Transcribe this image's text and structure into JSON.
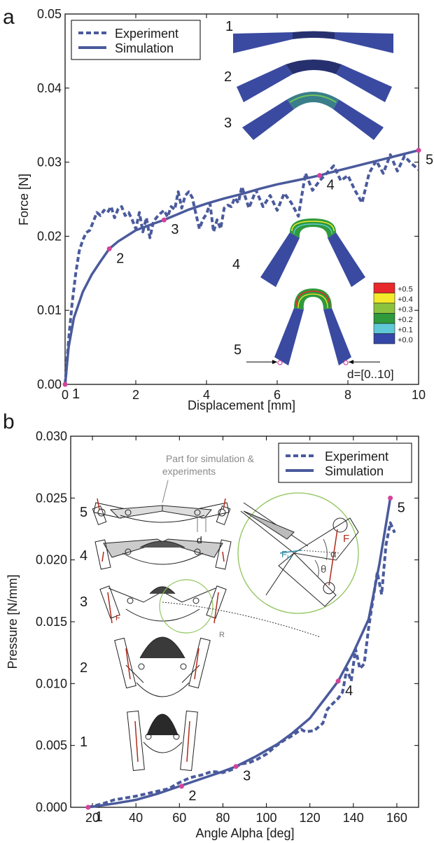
{
  "panel_labels": {
    "a": "a",
    "b": "b"
  },
  "colors": {
    "series": "#4a5a9c",
    "marker": "#d6429a",
    "mesh": "#3a4aa0",
    "green": "#8ec35a",
    "arrow": "#b02a1a"
  },
  "chart_data": [
    {
      "type": "line",
      "xlabel": "Displacement [mm]",
      "ylabel": "Force [N]",
      "xlim": [
        0,
        10
      ],
      "ylim": [
        0,
        0.05
      ],
      "xticks": [
        0,
        2,
        4,
        6,
        8,
        10
      ],
      "yticks": [
        0.0,
        0.01,
        0.02,
        0.03,
        0.04,
        0.05
      ],
      "ytick_labels": [
        "0.00",
        "0.01",
        "0.02",
        "0.03",
        "0.04",
        "0.05"
      ],
      "legend": {
        "position": "top-left",
        "entries": [
          "Experiment",
          "Simulation"
        ]
      },
      "series": [
        {
          "name": "Experiment",
          "style": "dashed",
          "x": [
            0,
            0.1,
            0.2,
            0.3,
            0.4,
            0.5,
            0.6,
            0.7,
            0.8,
            0.9,
            1.0,
            1.1,
            1.2,
            1.3,
            1.4,
            1.5,
            1.6,
            1.7,
            1.8,
            1.9,
            2.0,
            2.1,
            2.2,
            2.3,
            2.4,
            2.5,
            2.6,
            2.7,
            2.8,
            2.9,
            3.0,
            3.1,
            3.2,
            3.3,
            3.4,
            3.5,
            3.6,
            3.7,
            3.8,
            3.9,
            4.0,
            4.1,
            4.2,
            4.3,
            4.4,
            4.5,
            4.6,
            4.7,
            4.8,
            4.9,
            5.0,
            5.2,
            5.4,
            5.6,
            5.8,
            6.0,
            6.2,
            6.4,
            6.6,
            6.8,
            7.0,
            7.2,
            7.4,
            7.6,
            7.8,
            8.0,
            8.2,
            8.4,
            8.6,
            8.8,
            9.0,
            9.2,
            9.4,
            9.6,
            9.8,
            10.0
          ],
          "y": [
            0.0,
            0.006,
            0.011,
            0.015,
            0.018,
            0.0195,
            0.0205,
            0.0208,
            0.022,
            0.0232,
            0.0228,
            0.0235,
            0.0232,
            0.024,
            0.0225,
            0.0237,
            0.024,
            0.0228,
            0.0232,
            0.0222,
            0.021,
            0.0232,
            0.0206,
            0.0225,
            0.0198,
            0.022,
            0.0226,
            0.0231,
            0.0235,
            0.0226,
            0.024,
            0.0236,
            0.026,
            0.0238,
            0.0255,
            0.026,
            0.0252,
            0.023,
            0.021,
            0.0223,
            0.023,
            0.0244,
            0.0206,
            0.0222,
            0.021,
            0.0238,
            0.0242,
            0.024,
            0.0252,
            0.0245,
            0.0267,
            0.0238,
            0.0262,
            0.024,
            0.0255,
            0.0235,
            0.0258,
            0.0245,
            0.0227,
            0.0285,
            0.0262,
            0.0275,
            0.0285,
            0.0295,
            0.0275,
            0.0282,
            0.0262,
            0.0245,
            0.0285,
            0.0302,
            0.0285,
            0.031,
            0.0288,
            0.0308,
            0.0298,
            0.029
          ]
        },
        {
          "name": "Simulation",
          "style": "solid",
          "x": [
            0,
            0.1,
            0.25,
            0.5,
            0.75,
            1.0,
            1.25,
            1.5,
            2.0,
            2.5,
            2.8,
            3.0,
            3.5,
            4.0,
            4.5,
            5.0,
            5.5,
            6.0,
            6.5,
            7.0,
            7.2,
            7.5,
            8.0,
            8.5,
            9.0,
            9.5,
            10.0
          ],
          "y": [
            0.0,
            0.005,
            0.009,
            0.0125,
            0.0148,
            0.0166,
            0.0183,
            0.0193,
            0.0208,
            0.0217,
            0.0222,
            0.0226,
            0.0236,
            0.0244,
            0.0251,
            0.0257,
            0.0264,
            0.027,
            0.0275,
            0.028,
            0.0282,
            0.0286,
            0.0292,
            0.0298,
            0.0304,
            0.031,
            0.0316
          ]
        }
      ],
      "markers": [
        {
          "label": "1",
          "x": 0,
          "y": 0.0
        },
        {
          "label": "2",
          "x": 1.25,
          "y": 0.0183
        },
        {
          "label": "3",
          "x": 2.8,
          "y": 0.0222
        },
        {
          "label": "4",
          "x": 7.2,
          "y": 0.0282
        },
        {
          "label": "5",
          "x": 10.0,
          "y": 0.0316
        }
      ],
      "inset_labels": [
        "1",
        "2",
        "3",
        "4",
        "5"
      ],
      "colorbar": {
        "labels": [
          "+0.5",
          "+0.4",
          "+0.3",
          "+0.2",
          "+0.1",
          "+0.0"
        ],
        "colors": [
          "#e8282a",
          "#f2ea2a",
          "#8cc33e",
          "#2e9a3c",
          "#5ec8d6",
          "#3447a8"
        ]
      },
      "annotation": "d=[0..10]"
    },
    {
      "type": "line",
      "xlabel": "Angle Alpha [deg]",
      "ylabel": "Pressure [N/mm]",
      "xlim": [
        10,
        170
      ],
      "ylim": [
        0,
        0.03
      ],
      "xticks": [
        20,
        40,
        60,
        80,
        100,
        120,
        140,
        160
      ],
      "yticks": [
        0.0,
        0.005,
        0.01,
        0.015,
        0.02,
        0.025,
        0.03
      ],
      "ytick_labels": [
        "0.000",
        "0.005",
        "0.010",
        "0.015",
        "0.020",
        "0.025",
        "0.030"
      ],
      "legend": {
        "position": "top-right",
        "entries": [
          "Experiment",
          "Simulation"
        ]
      },
      "series": [
        {
          "name": "Experiment",
          "style": "dashed",
          "x": [
            18,
            25,
            30,
            40,
            50,
            55,
            60,
            65,
            70,
            75,
            80,
            85,
            88,
            92,
            96,
            100,
            104,
            108,
            112,
            116,
            118,
            122,
            126,
            128,
            130,
            133,
            135,
            137,
            139,
            141,
            143,
            145,
            147,
            149,
            151,
            153,
            155,
            157,
            159
          ],
          "y": [
            0.0,
            0.0003,
            0.0006,
            0.0009,
            0.0013,
            0.0015,
            0.002,
            0.0024,
            0.0026,
            0.0029,
            0.0028,
            0.0031,
            0.0035,
            0.0036,
            0.0039,
            0.0043,
            0.0049,
            0.0054,
            0.0058,
            0.0063,
            0.0061,
            0.0062,
            0.0068,
            0.0079,
            0.0083,
            0.0088,
            0.0093,
            0.0112,
            0.0102,
            0.0128,
            0.0112,
            0.0116,
            0.0145,
            0.0168,
            0.019,
            0.0172,
            0.0212,
            0.023,
            0.0222
          ]
        },
        {
          "name": "Simulation",
          "style": "solid",
          "x": [
            18,
            30,
            40,
            50,
            60,
            70,
            80,
            86,
            95,
            105,
            112,
            120,
            127,
            133,
            140,
            147,
            152,
            157
          ],
          "y": [
            0.0,
            0.0003,
            0.0006,
            0.0011,
            0.0017,
            0.0023,
            0.0029,
            0.0033,
            0.0041,
            0.0051,
            0.006,
            0.0072,
            0.0088,
            0.0102,
            0.0125,
            0.0152,
            0.0197,
            0.025
          ]
        }
      ],
      "markers": [
        {
          "label": "1",
          "x": 18,
          "y": 0.0
        },
        {
          "label": "2",
          "x": 61,
          "y": 0.0017
        },
        {
          "label": "3",
          "x": 86,
          "y": 0.0033
        },
        {
          "label": "4",
          "x": 133,
          "y": 0.0102
        },
        {
          "label": "5",
          "x": 157,
          "y": 0.025
        }
      ],
      "inset_labels": [
        "5",
        "4",
        "3",
        "2",
        "1"
      ],
      "annotations": {
        "part_note": [
          "Part for simulation &",
          "experiments"
        ],
        "d": "d",
        "f": "F",
        "r": "R",
        "fh": "F",
        "fh_sub": "H",
        "alpha": "α",
        "theta": "θ"
      }
    }
  ]
}
